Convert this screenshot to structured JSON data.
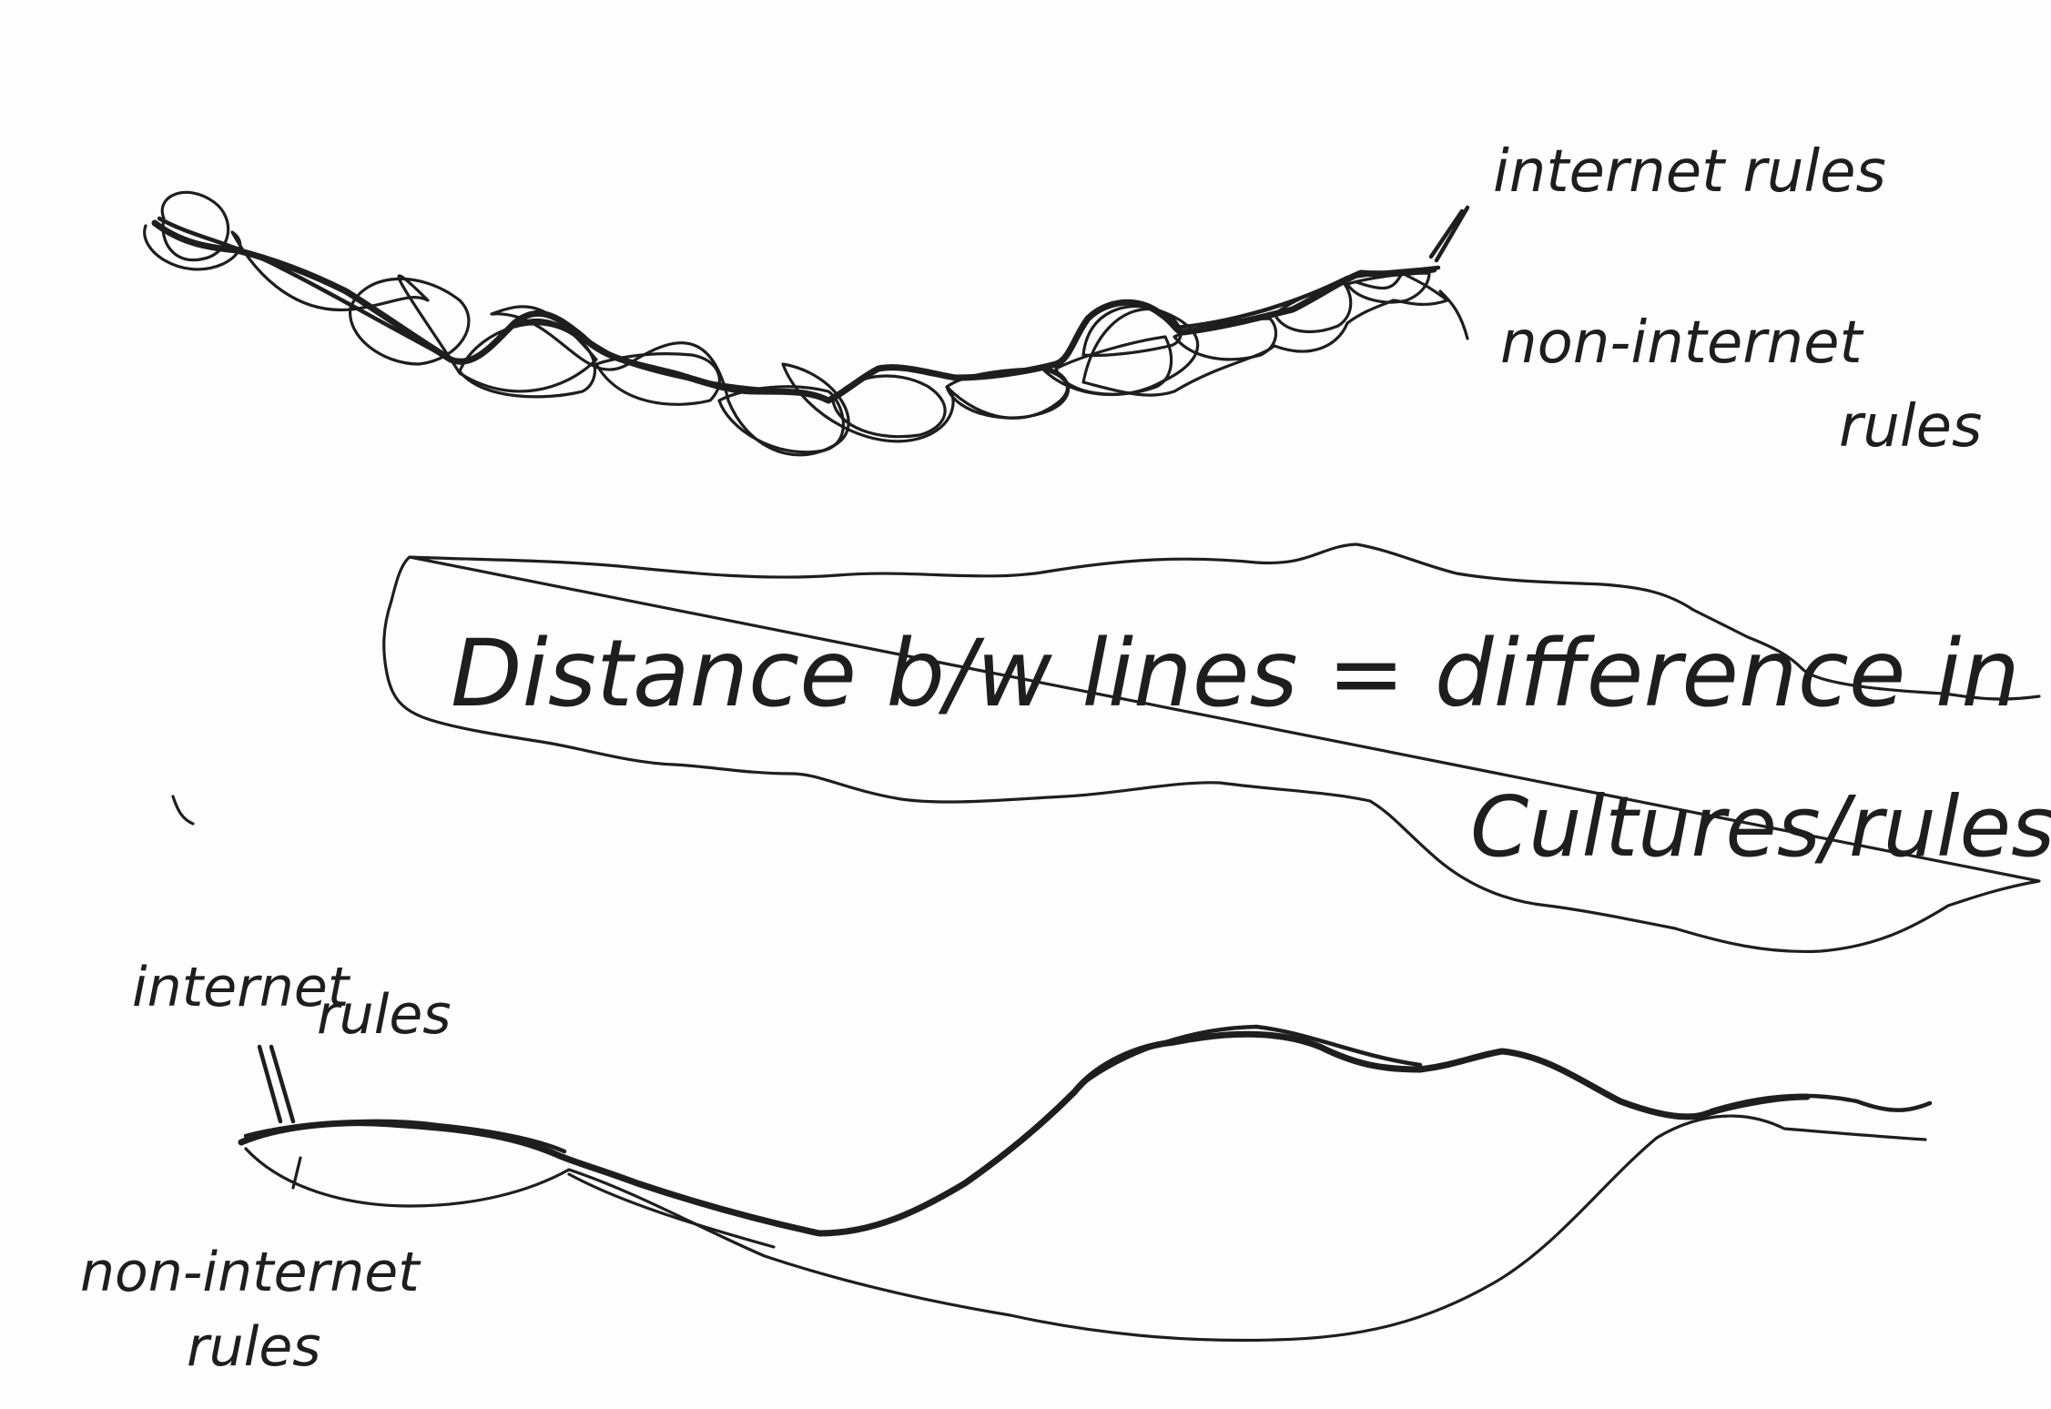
{
  "top_diagram": {
    "label_upper": "internet rules",
    "label_lower_line1": "non-internet",
    "label_lower_line2": "rules"
  },
  "callout": {
    "line1": "Distance b/w lines = difference in",
    "line2": "Cultures/rules"
  },
  "bottom_diagram": {
    "label_upper_line1": "internet",
    "label_upper_line2": "rules",
    "label_lower_line1": "non-internet",
    "label_lower_line2": "rules"
  }
}
